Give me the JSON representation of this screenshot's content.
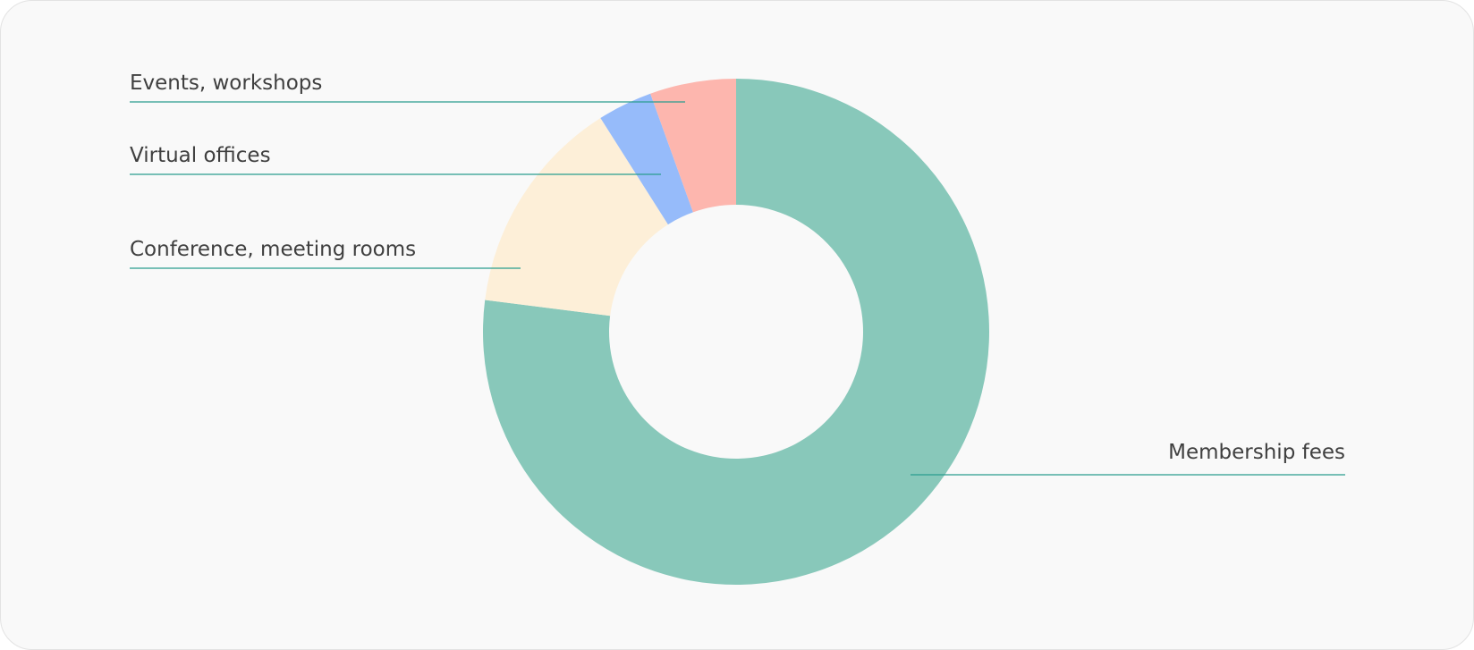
{
  "chart_data": {
    "type": "pie",
    "donut": true,
    "slices": [
      {
        "label": "Membership fees",
        "value": 77,
        "color": "#88c8ba"
      },
      {
        "label": "Conference, meeting rooms",
        "value": 14,
        "color": "#fdefd8"
      },
      {
        "label": "Virtual offices",
        "value": 3.5,
        "color": "#96bbfa"
      },
      {
        "label": "Events, workshops",
        "value": 5.5,
        "color": "#fdb6ae"
      }
    ],
    "leader_color": "#2a9d8f"
  }
}
